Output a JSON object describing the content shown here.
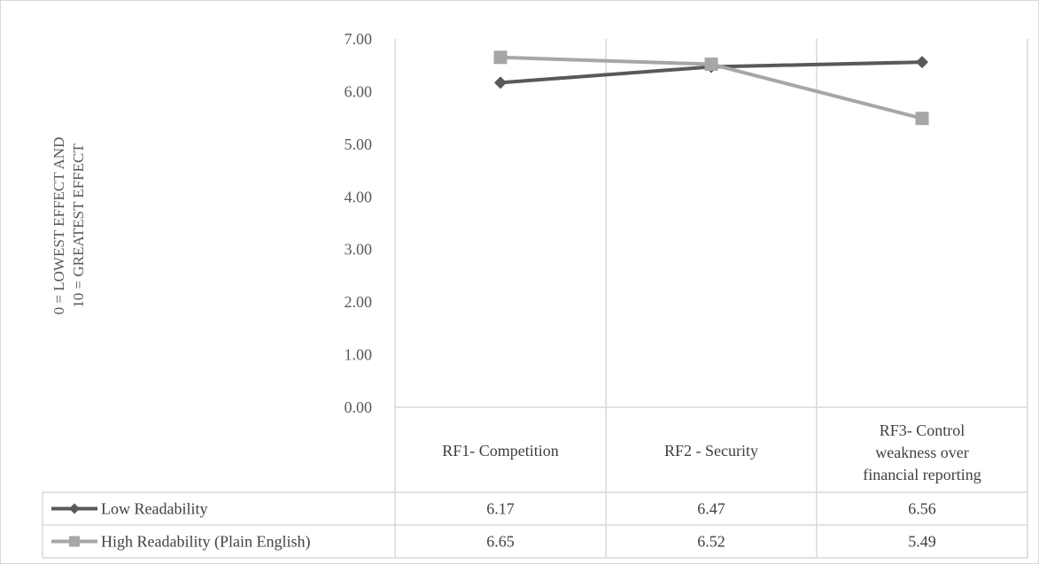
{
  "chart_data": {
    "type": "line",
    "ylabel": [
      "0 = LOWEST EFFECT AND",
      "10 = GREATEST EFFECT"
    ],
    "ylim": [
      0,
      7
    ],
    "yticks": [
      "0.00",
      "1.00",
      "2.00",
      "3.00",
      "4.00",
      "5.00",
      "6.00",
      "7.00"
    ],
    "categories": [
      [
        "RF1- Competition"
      ],
      [
        "RF2 - Security"
      ],
      [
        "RF3- Control",
        "weakness over",
        "financial reporting"
      ]
    ],
    "series": [
      {
        "name": "Low Readability",
        "values": [
          6.17,
          6.47,
          6.56
        ],
        "labels": [
          "6.17",
          "6.47",
          "6.56"
        ],
        "color": "#595959",
        "marker": "diamond"
      },
      {
        "name": "High Readability (Plain English)",
        "values": [
          6.65,
          6.52,
          5.49
        ],
        "labels": [
          "6.65",
          "6.52",
          "5.49"
        ],
        "color": "#a6a6a6",
        "marker": "square"
      }
    ],
    "grid": true,
    "data_table": true
  }
}
